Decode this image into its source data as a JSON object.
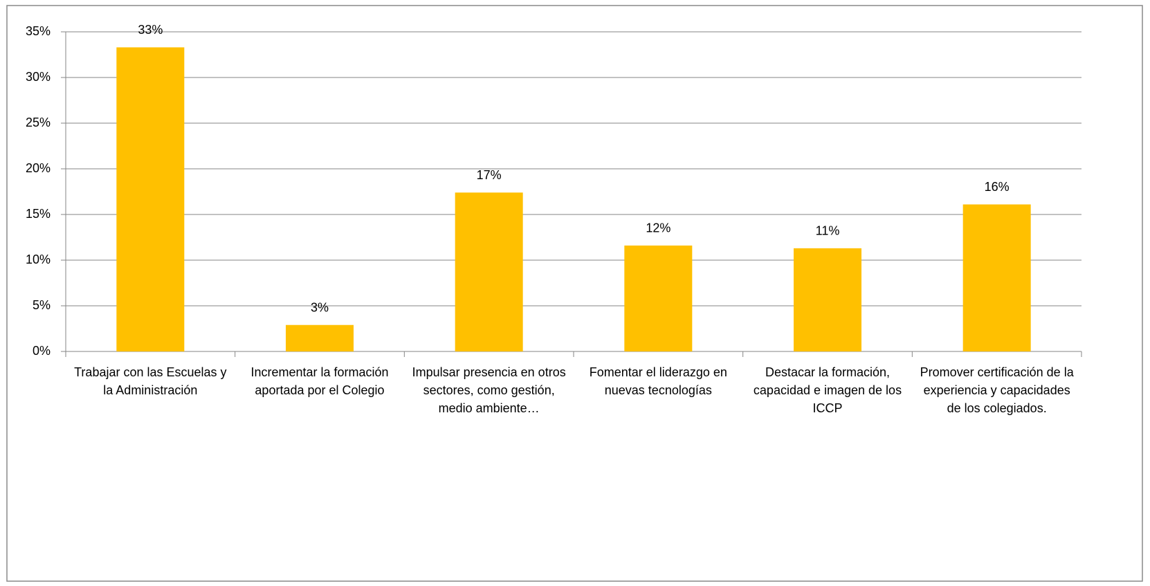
{
  "chart_data": {
    "type": "bar",
    "categories": [
      "Trabajar con las Escuelas y la Administración",
      "Incrementar la formación aportada por el Colegio",
      "Impulsar presencia en otros sectores, como gestión, medio ambiente…",
      "Fomentar el liderazgo en nuevas tecnologías",
      "Destacar la formación, capacidad e imagen de los ICCP",
      "Promover certificación de la experiencia y capacidades de los colegiados."
    ],
    "values": [
      33.3,
      2.9,
      17.4,
      11.6,
      11.3,
      16.1
    ],
    "value_labels": [
      "33%",
      "3%",
      "17%",
      "12%",
      "11%",
      "16%"
    ],
    "color": "#ffc000",
    "ylim": [
      0,
      35
    ],
    "yticks": [
      {
        "value": 0,
        "label": "0%"
      },
      {
        "value": 5,
        "label": "5%"
      },
      {
        "value": 10,
        "label": "10%"
      },
      {
        "value": 15,
        "label": "15%"
      },
      {
        "value": 20,
        "label": "20%"
      },
      {
        "value": 25,
        "label": "25%"
      },
      {
        "value": 30,
        "label": "30%"
      },
      {
        "value": 35,
        "label": "35%"
      }
    ],
    "grid": true
  }
}
